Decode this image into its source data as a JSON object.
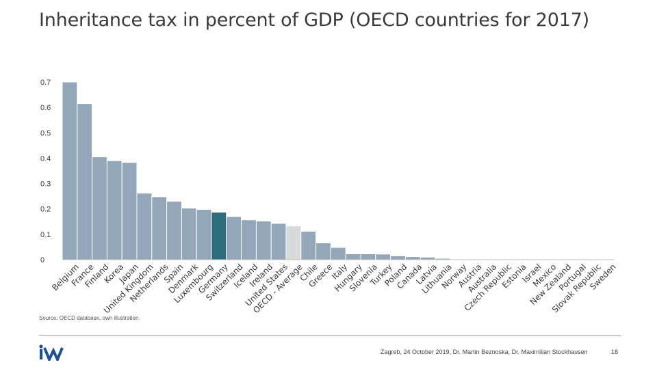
{
  "title": "Inheritance tax in percent of GDP (OECD countries for 2017)",
  "source": "Source: OECD database, own illustration.",
  "footer": "Zagreb, 24 October 2019, Dr. Martin Beznoska, Dr. Maximilian Stockhausen",
  "page_number": "18",
  "logo": {
    "text": "iW",
    "color": "#1f4f96"
  },
  "colors": {
    "default_bar": "#94a7b9",
    "croatia_bar": "#2d6e7c",
    "average_bar": "#d9d9d9",
    "text": "#3a3a3a"
  },
  "chart_data": {
    "type": "bar",
    "title": "Inheritance tax in percent of GDP (OECD countries for 2017)",
    "xlabel": "",
    "ylabel": "",
    "ylim": [
      0,
      0.7
    ],
    "yticks": [
      "0",
      "0.1",
      "0.2",
      "0.3",
      "0.4",
      "0.5",
      "0.6",
      "0.7"
    ],
    "grid": false,
    "categories": [
      "Belgium",
      "France",
      "Finland",
      "Korea",
      "Japan",
      "United Kingdom",
      "Netherlands",
      "Spain",
      "Denmark",
      "Luxembourg",
      "Germany",
      "Switzerland",
      "Iceland",
      "Ireland",
      "United States",
      "OECD - Average",
      "Chile",
      "Greece",
      "Italy",
      "Hungary",
      "Slovenia",
      "Turkey",
      "Poland",
      "Canada",
      "Latvia",
      "Lithuania",
      "Norway",
      "Austria",
      "Australia",
      "Czech Republic",
      "Estonia",
      "Israel",
      "Mexico",
      "New Zealand",
      "Portugal",
      "Slovak Republic",
      "Sweden"
    ],
    "values": [
      0.7,
      0.615,
      0.405,
      0.39,
      0.383,
      0.262,
      0.248,
      0.23,
      0.203,
      0.198,
      0.187,
      0.17,
      0.157,
      0.152,
      0.143,
      0.133,
      0.112,
      0.066,
      0.048,
      0.023,
      0.023,
      0.022,
      0.015,
      0.012,
      0.01,
      0.005,
      0.001,
      0,
      0,
      0,
      0,
      0,
      0,
      0,
      0,
      0,
      0
    ],
    "highlight": {
      "index": 10,
      "color": "#2d6e7c"
    },
    "average_index": 15
  }
}
